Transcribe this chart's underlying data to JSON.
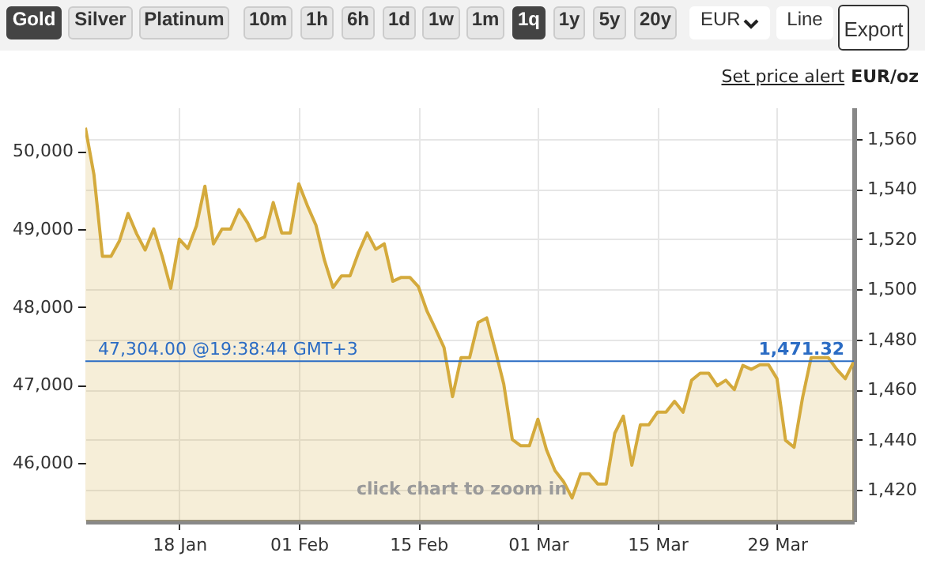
{
  "chart_data": {
    "type": "area",
    "annotations": [
      "Gold",
      "Silver",
      "Platinum",
      "10m",
      "1h",
      "6h",
      "1d",
      "1w",
      "1m",
      "1q",
      "1y",
      "5y",
      "20y",
      "EUR",
      "Line",
      "Export",
      "Set price alert",
      "click chart to zoom in",
      {
        "text": "1,471.32",
        "x": "--04-07",
        "y": 47304
      }
    ],
    "y2label": "EUR/oz",
    "x": [
      "--01-07",
      "--01-08",
      "--01-09",
      "--01-10",
      "--01-11",
      "--01-12",
      "--01-13",
      "--01-14",
      "--01-15",
      "--01-16",
      "--01-17",
      "--01-18",
      "--01-19",
      "--01-20",
      "--01-21",
      "--01-22",
      "--01-23",
      "--01-24",
      "--01-25",
      "--01-26",
      "--01-27",
      "--01-28",
      "--01-29",
      "--01-30",
      "--01-31",
      "--02-01",
      "--02-02",
      "--02-03",
      "--02-04",
      "--02-05",
      "--02-06",
      "--02-07",
      "--02-08",
      "--02-09",
      "--02-10",
      "--02-11",
      "--02-12",
      "--02-13",
      "--02-14",
      "--02-15",
      "--02-16",
      "--02-17",
      "--02-18",
      "--02-19",
      "--02-20",
      "--02-21",
      "--02-22",
      "--02-23",
      "--02-24",
      "--02-25",
      "--02-26",
      "--02-27",
      "--02-28",
      "--03-01",
      "--03-02",
      "--03-03",
      "--03-04",
      "--03-05",
      "--03-06",
      "--03-07",
      "--03-08",
      "--03-09",
      "--03-10",
      "--03-11",
      "--03-12",
      "--03-13",
      "--03-14",
      "--03-15",
      "--03-16",
      "--03-17",
      "--03-18",
      "--03-19",
      "--03-20",
      "--03-21",
      "--03-22",
      "--03-23",
      "--03-24",
      "--03-25",
      "--03-26",
      "--03-27",
      "--03-28",
      "--03-29",
      "--03-30",
      "--03-31",
      "--04-01",
      "--04-02",
      "--04-03",
      "--04-04",
      "--04-05",
      "--04-06",
      "--04-07"
    ],
    "series": [
      {
        "color": "#d4aa3c",
        "values": [
          50300,
          49700,
          48650,
          48650,
          48850,
          49200,
          48940,
          48730,
          49000,
          48650,
          48240,
          48870,
          48750,
          49040,
          49550,
          48810,
          49000,
          49000,
          49250,
          49080,
          48850,
          48900,
          49340,
          48950,
          48950,
          49580,
          49300,
          49050,
          48600,
          48250,
          48400,
          48400,
          48700,
          48950,
          48740,
          48810,
          48330,
          48380,
          48380,
          48260,
          47950,
          47720,
          47480,
          46850,
          47350,
          47350,
          47800,
          47860,
          47450,
          47010,
          46300,
          46220,
          46220,
          46560,
          46170,
          45900,
          45760,
          45550,
          45860,
          45860,
          45730,
          45730,
          46380,
          46600,
          45970,
          46490,
          46490,
          46650,
          46650,
          46790,
          46650,
          47060,
          47150,
          47150,
          46990,
          47060,
          46940,
          47250,
          47200,
          47260,
          47260,
          47080,
          46290,
          46200,
          46840,
          47350,
          47350,
          47350,
          47200,
          47080,
          47300
        ]
      }
    ],
    "xlim": [
      "--01-07",
      "--04-07"
    ],
    "xticks": [
      {
        "value": "--01-18",
        "label": "18 Jan"
      },
      {
        "value": "--02-01",
        "label": "01 Feb"
      },
      {
        "value": "--02-15",
        "label": "15 Feb"
      },
      {
        "value": "--03-01",
        "label": "01 Mar"
      },
      {
        "value": "--03-15",
        "label": "15 Mar"
      },
      {
        "value": "--03-29",
        "label": "29 Mar"
      }
    ],
    "ylim": [
      45250,
      50560
    ],
    "yticks": [
      {
        "value": 46000,
        "label": "46,000"
      },
      {
        "value": 47000,
        "label": "47,000"
      },
      {
        "value": 48000,
        "label": "48,000"
      },
      {
        "value": 49000,
        "label": "49,000"
      },
      {
        "value": 50000,
        "label": "50,000"
      }
    ],
    "y2lim": [
      1407.5,
      1572.6
    ],
    "y2ticks": [
      {
        "value": 1420,
        "label": "1,420"
      },
      {
        "value": 1440,
        "label": "1,440"
      },
      {
        "value": 1460,
        "label": "1,460"
      },
      {
        "value": 1480,
        "label": "1,480"
      },
      {
        "value": 1500,
        "label": "1,500"
      },
      {
        "value": 1520,
        "label": "1,520"
      },
      {
        "value": 1540,
        "label": "1,540"
      },
      {
        "value": 1560,
        "label": "1,560"
      }
    ],
    "grid": true,
    "ref_lines": [
      {
        "axis": "y",
        "value": 47304,
        "label": "47,304.00 @19:38:44 GMT+3",
        "color": "#2b6cc4"
      }
    ]
  }
}
